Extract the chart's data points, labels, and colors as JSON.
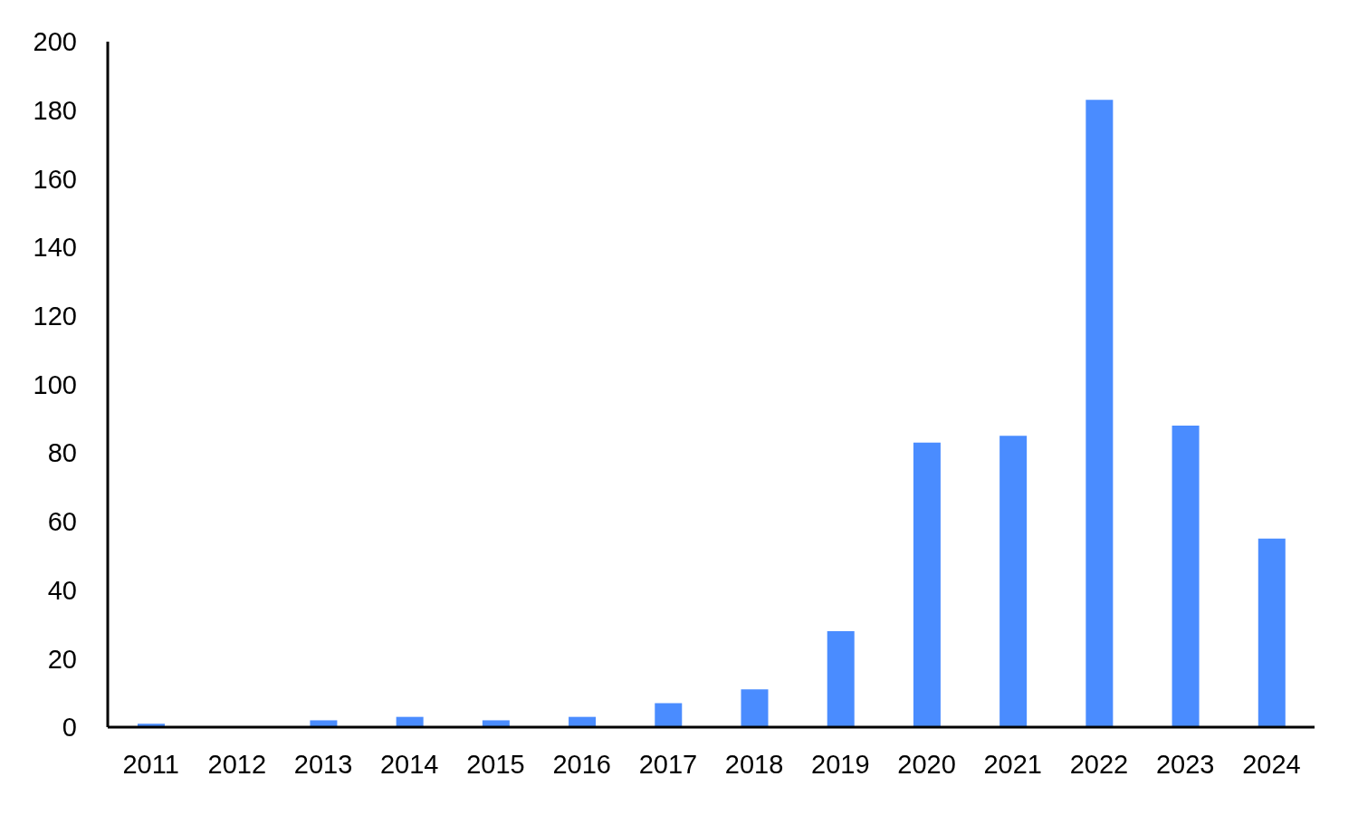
{
  "chart_data": {
    "type": "bar",
    "categories": [
      "2011",
      "2012",
      "2013",
      "2014",
      "2015",
      "2016",
      "2017",
      "2018",
      "2019",
      "2020",
      "2021",
      "2022",
      "2023",
      "2024"
    ],
    "values": [
      1,
      0,
      2,
      3,
      2,
      3,
      7,
      11,
      28,
      83,
      85,
      183,
      88,
      55
    ],
    "color": "#4a8cff",
    "ylim": [
      0,
      200
    ],
    "yticks": [
      0,
      20,
      40,
      60,
      80,
      100,
      120,
      140,
      160,
      180,
      200
    ]
  }
}
